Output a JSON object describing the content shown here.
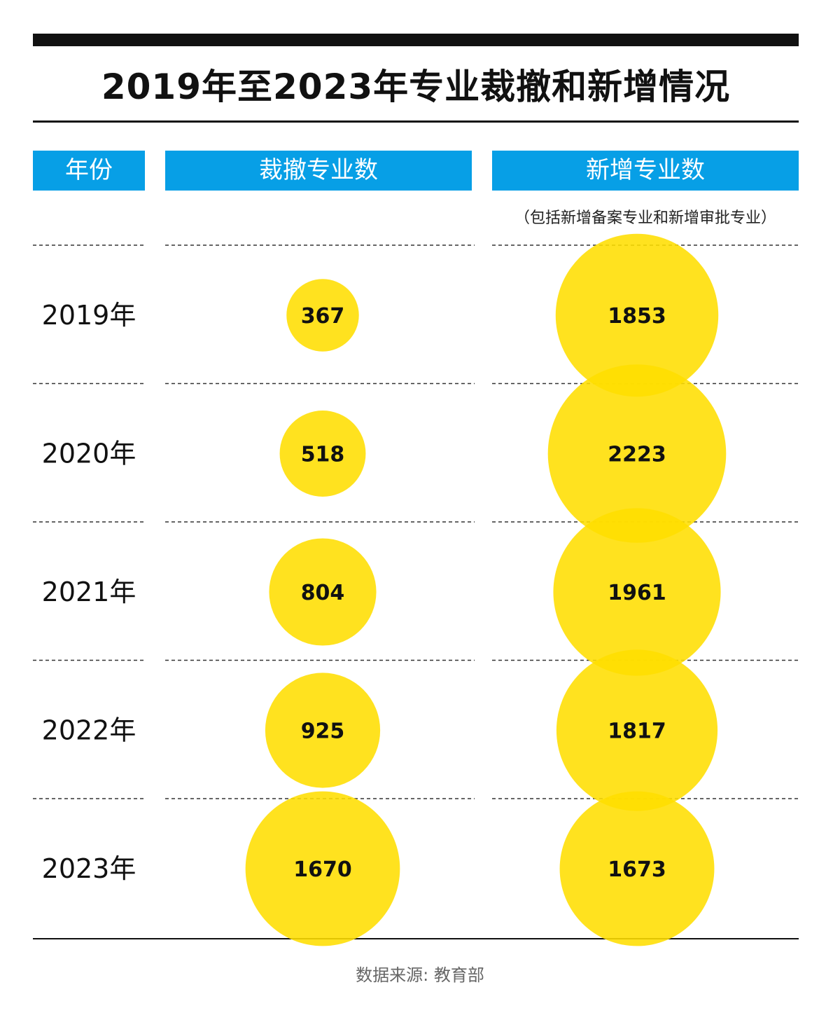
{
  "title": "2019年至2023年专业裁撤和新增情况",
  "headers": {
    "year": "年份",
    "cut": "裁撤专业数",
    "added": "新增专业数"
  },
  "note": "（包括新增备案专业和新增审批专业）",
  "source": "数据来源: 教育部",
  "colors": {
    "header": "#079fe6",
    "bubble": "#ffde00",
    "text": "#111111"
  },
  "chart_data": {
    "type": "table",
    "columns": [
      "年份",
      "裁撤专业数",
      "新增专业数"
    ],
    "rows": [
      {
        "year": "2019年",
        "cut": 367,
        "added": 1853
      },
      {
        "year": "2020年",
        "cut": 518,
        "added": 2223
      },
      {
        "year": "2021年",
        "cut": 804,
        "added": 1961
      },
      {
        "year": "2022年",
        "cut": 925,
        "added": 1817
      },
      {
        "year": "2023年",
        "cut": 1670,
        "added": 1673
      }
    ]
  }
}
